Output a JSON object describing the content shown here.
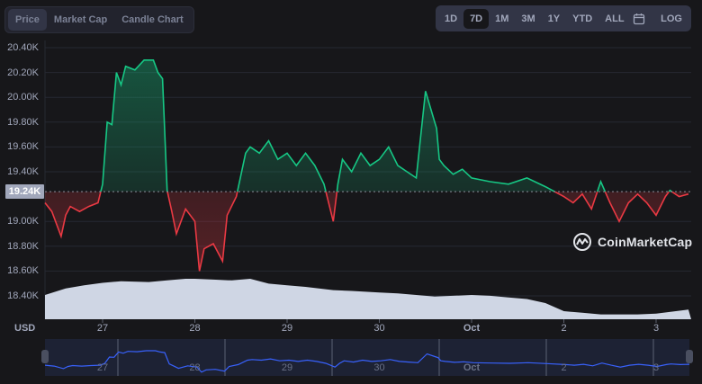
{
  "tabs": [
    {
      "label": "Price",
      "active": true
    },
    {
      "label": "Market Cap",
      "active": false
    },
    {
      "label": "Candle Chart",
      "active": false
    }
  ],
  "ranges": [
    {
      "label": "1D",
      "active": false
    },
    {
      "label": "7D",
      "active": true
    },
    {
      "label": "1M",
      "active": false
    },
    {
      "label": "3M",
      "active": false
    },
    {
      "label": "1Y",
      "active": false
    },
    {
      "label": "YTD",
      "active": false
    },
    {
      "label": "ALL",
      "active": false
    }
  ],
  "calendar_icon": "calendar-icon",
  "log_label": "LOG",
  "currency_label": "USD",
  "current_price_label": "19.24K",
  "watermark": "CoinMarketCap",
  "colors": {
    "up": "#16c784",
    "down": "#ea3943",
    "volume": "#cfd6e4",
    "navigator_line": "#3861fb",
    "background": "#17171a",
    "grid": "#262832"
  },
  "chart_data": {
    "type": "line",
    "title": "",
    "xlabel": "",
    "ylabel": "USD",
    "y_ticks": [
      "20.40K",
      "20.20K",
      "20.00K",
      "19.80K",
      "19.60K",
      "19.40K",
      "19.00K",
      "18.80K",
      "18.60K",
      "18.40K"
    ],
    "x_ticks": [
      "27",
      "28",
      "29",
      "30",
      "Oct",
      "2",
      "3"
    ],
    "ylim": [
      18.3,
      20.45
    ],
    "baseline": 19.24,
    "grid": true,
    "legend": "none",
    "series": [
      {
        "name": "Price (K USD)",
        "x": [
          26.35,
          26.45,
          26.55,
          26.6,
          26.65,
          26.75,
          26.85,
          26.95,
          27.0,
          27.05,
          27.1,
          27.15,
          27.2,
          27.25,
          27.35,
          27.45,
          27.55,
          27.6,
          27.65,
          27.7,
          27.75,
          27.8,
          27.9,
          28.0,
          28.05,
          28.1,
          28.2,
          28.3,
          28.35,
          28.45,
          28.55,
          28.6,
          28.7,
          28.8,
          28.9,
          29.0,
          29.1,
          29.2,
          29.3,
          29.4,
          29.5,
          29.55,
          29.6,
          29.7,
          29.8,
          29.9,
          30.0,
          30.1,
          30.2,
          30.3,
          30.4,
          30.5,
          30.6,
          30.62,
          30.65,
          30.7,
          30.8,
          30.9,
          31.0,
          31.2,
          31.4,
          31.6,
          31.8,
          32.0,
          32.1,
          32.2,
          32.3,
          32.4,
          32.5,
          32.6,
          32.7,
          32.8,
          32.9,
          33.0,
          33.1,
          33.15,
          33.25,
          33.35
        ],
        "values": [
          19.15,
          19.08,
          18.88,
          19.05,
          19.12,
          19.08,
          19.12,
          19.15,
          19.3,
          19.8,
          19.78,
          20.2,
          20.1,
          20.25,
          20.22,
          20.3,
          20.3,
          20.2,
          20.15,
          19.25,
          19.08,
          18.9,
          19.1,
          19.0,
          18.6,
          18.78,
          18.82,
          18.68,
          19.05,
          19.2,
          19.55,
          19.6,
          19.55,
          19.65,
          19.5,
          19.55,
          19.45,
          19.55,
          19.45,
          19.3,
          19.0,
          19.3,
          19.5,
          19.4,
          19.55,
          19.45,
          19.5,
          19.6,
          19.45,
          19.4,
          19.35,
          20.05,
          19.8,
          19.75,
          19.5,
          19.45,
          19.38,
          19.42,
          19.35,
          19.32,
          19.3,
          19.35,
          19.28,
          19.2,
          19.15,
          19.22,
          19.1,
          19.32,
          19.15,
          19.0,
          19.15,
          19.22,
          19.15,
          19.05,
          19.2,
          19.25,
          19.2,
          19.22
        ]
      },
      {
        "name": "Volume (relative)",
        "x": [
          26.35,
          26.6,
          26.8,
          27.0,
          27.2,
          27.5,
          27.7,
          27.9,
          28.0,
          28.2,
          28.4,
          28.6,
          28.8,
          29.0,
          29.2,
          29.5,
          29.7,
          30.0,
          30.2,
          30.4,
          30.6,
          30.8,
          31.0,
          31.2,
          31.4,
          31.6,
          31.8,
          32.0,
          32.2,
          32.4,
          32.6,
          32.8,
          33.0,
          33.35
        ],
        "values": [
          0.3,
          0.38,
          0.42,
          0.45,
          0.47,
          0.46,
          0.48,
          0.5,
          0.5,
          0.49,
          0.48,
          0.5,
          0.44,
          0.42,
          0.4,
          0.36,
          0.35,
          0.33,
          0.32,
          0.3,
          0.28,
          0.29,
          0.3,
          0.29,
          0.27,
          0.25,
          0.2,
          0.1,
          0.08,
          0.06,
          0.06,
          0.06,
          0.07,
          0.12
        ]
      }
    ]
  },
  "navigator": {
    "labels": [
      "27",
      "28",
      "29",
      "30",
      "Oct",
      "2",
      "3"
    ],
    "left_handle": "navigator-left-handle",
    "right_handle": "navigator-right-handle"
  }
}
